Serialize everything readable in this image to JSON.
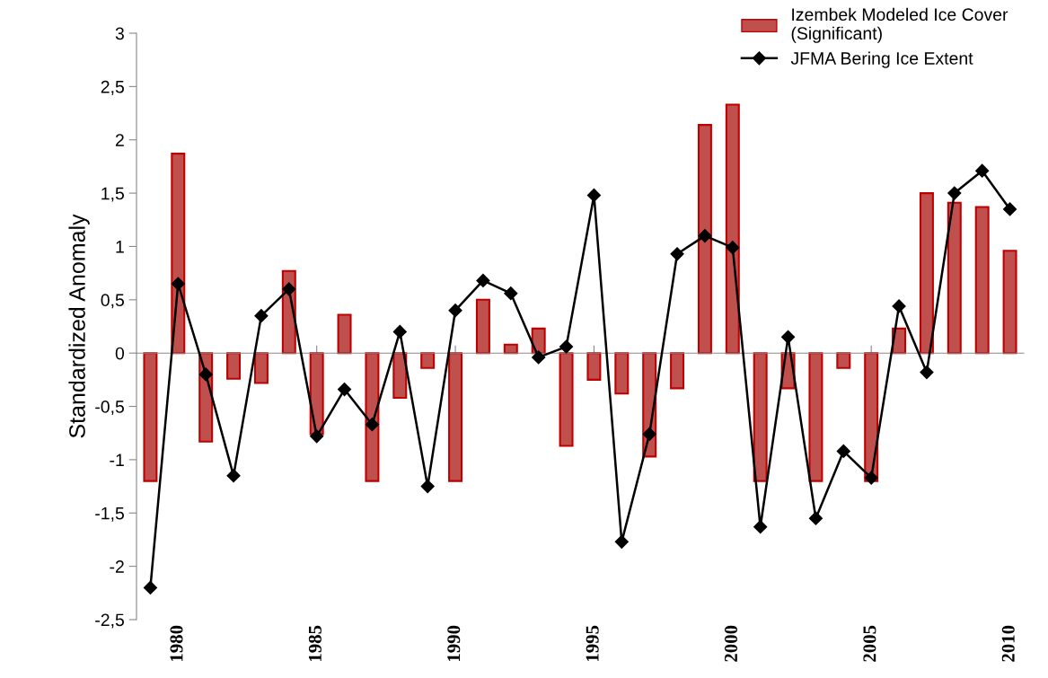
{
  "chart_data": {
    "type": "bar",
    "ylabel": "Standardized Anomaly",
    "x": [
      1979,
      1980,
      1981,
      1982,
      1983,
      1984,
      1985,
      1986,
      1987,
      1988,
      1989,
      1990,
      1991,
      1992,
      1993,
      1994,
      1995,
      1996,
      1997,
      1998,
      1999,
      2000,
      2001,
      2002,
      2003,
      2004,
      2005,
      2006,
      2007,
      2008,
      2009,
      2010
    ],
    "series": [
      {
        "name": "Izembek Modeled Ice Cover\n(Significant)",
        "color": "#c0504d",
        "values": [
          -1.2,
          1.87,
          -0.83,
          -0.24,
          -0.28,
          0.77,
          -0.76,
          0.36,
          -1.2,
          -0.42,
          -0.14,
          -1.2,
          0.5,
          0.08,
          0.23,
          -0.87,
          -0.25,
          -0.38,
          -0.97,
          -0.33,
          2.14,
          2.33,
          -1.2,
          -0.33,
          -1.2,
          -0.14,
          -1.2,
          0.23,
          1.5,
          1.41,
          1.37,
          0.96
        ]
      },
      {
        "name": "JFMA Bering Ice Extent",
        "type": "line",
        "color": "#000000",
        "marker": "diamond",
        "values": [
          -2.2,
          0.65,
          -0.2,
          -1.15,
          0.35,
          0.6,
          -0.78,
          -0.34,
          -0.67,
          0.2,
          -1.25,
          0.4,
          0.68,
          0.56,
          -0.04,
          0.06,
          1.48,
          -1.77,
          -0.76,
          0.93,
          1.1,
          0.99,
          -1.63,
          0.15,
          -1.55,
          -0.92,
          -1.17,
          0.44,
          -0.18,
          1.5,
          1.71,
          1.35
        ]
      }
    ],
    "xlim": [
      1978.5,
      2010.5
    ],
    "xticks": [
      1980,
      1985,
      1990,
      1995,
      2000,
      2005,
      2010
    ],
    "ylim": [
      -2.5,
      3
    ],
    "yticks": [
      {
        "value": -2.5,
        "label": "-2,5"
      },
      -2,
      {
        "value": -1.5,
        "label": "-1,5"
      },
      -1,
      {
        "value": -0.5,
        "label": "-0,5"
      },
      0,
      {
        "value": 0.5,
        "label": "0,5"
      },
      1,
      {
        "value": 1.5,
        "label": "1,5"
      },
      2,
      {
        "value": 2.5,
        "label": "2,5"
      },
      3
    ],
    "legend": "top right"
  }
}
